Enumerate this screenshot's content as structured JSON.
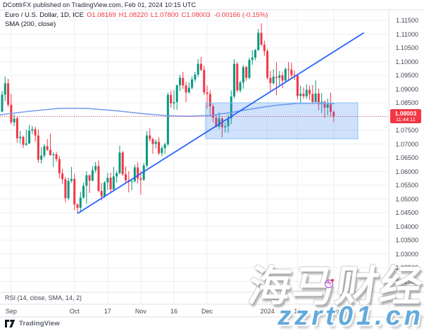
{
  "header": {
    "publish_line": "DCottlrFX published on TradingView.com, Feb 01, 2024 10:15 UTC"
  },
  "legend": {
    "symbol": "Euro / U.S. Dollar, 1D, ICE",
    "o": "O1.08169",
    "h": "H1.08220",
    "l": "L1.07800",
    "c": "C1.08003",
    "change": "-0.00166 (-0.15%)",
    "sma_line": "SMA (200, close)"
  },
  "rsi": {
    "label": "RSI (14, close, SMA, 14, 2)"
  },
  "price_tag": {
    "price": "1.08003",
    "countdown": "11:44:11"
  },
  "footer": {
    "attribution": "TradingView"
  },
  "watermarks": {
    "cjk": "海马财经",
    "url": "zzrt01.cn"
  },
  "colors": {
    "up": "#089981",
    "down": "#f23645",
    "sma": "#7da0f0",
    "trend": "#2962ff",
    "rect_fill": "rgba(66,135,245,0.25)",
    "rect_border": "#8ac4f2",
    "last_price": "#f23645",
    "grid": "#edeff4",
    "border": "#dde1e9"
  },
  "chart_data": {
    "type": "candlestick",
    "title": "Euro / U.S. Dollar, 1D, ICE",
    "timeframe": "1D",
    "price_axis": {
      "min": 1.02,
      "max": 1.115,
      "step": 0.005,
      "decimals": 5
    },
    "time_ticks": [
      {
        "label": "Sep",
        "i": 3
      },
      {
        "label": "Oct",
        "i": 24
      },
      {
        "label": "17",
        "i": 35
      },
      {
        "label": "Nov",
        "i": 46
      },
      {
        "label": "16",
        "i": 57
      },
      {
        "label": "Dec",
        "i": 68
      },
      {
        "label": "2024",
        "i": 88
      },
      {
        "label": "16",
        "i": 98
      },
      {
        "label": "Feb",
        "i": 110
      }
    ],
    "last_price": 1.08003,
    "candles": [
      [
        1.0818,
        1.0893,
        1.0816,
        1.088
      ],
      [
        1.088,
        1.0945,
        1.0856,
        1.0921
      ],
      [
        1.0921,
        1.0937,
        1.0835,
        1.0843
      ],
      [
        1.0843,
        1.0882,
        1.0772,
        1.0779
      ],
      [
        1.0779,
        1.0808,
        1.0765,
        1.0793
      ],
      [
        1.0793,
        1.08,
        1.0705,
        1.0721
      ],
      [
        1.0721,
        1.0748,
        1.0702,
        1.0726
      ],
      [
        1.0726,
        1.0731,
        1.0686,
        1.0697
      ],
      [
        1.0697,
        1.0752,
        1.0694,
        1.0702
      ],
      [
        1.0702,
        1.0769,
        1.07,
        1.0749
      ],
      [
        1.0749,
        1.0766,
        1.0736,
        1.0754
      ],
      [
        1.0754,
        1.0763,
        1.0709,
        1.0731
      ],
      [
        1.0731,
        1.0753,
        1.0632,
        1.0643
      ],
      [
        1.0643,
        1.0688,
        1.0629,
        1.0658
      ],
      [
        1.0658,
        1.0699,
        1.065,
        1.0692
      ],
      [
        1.0692,
        1.0718,
        1.0675,
        1.0679
      ],
      [
        1.0679,
        1.0737,
        1.0657,
        1.066
      ],
      [
        1.066,
        1.0671,
        1.0617,
        1.0663
      ],
      [
        1.0663,
        1.0672,
        1.0635,
        1.0645
      ],
      [
        1.0645,
        1.0656,
        1.0575,
        1.0593
      ],
      [
        1.0593,
        1.0609,
        1.0555,
        1.0572
      ],
      [
        1.0572,
        1.058,
        1.0488,
        1.0503
      ],
      [
        1.0503,
        1.0578,
        1.0495,
        1.0566
      ],
      [
        1.0566,
        1.0617,
        1.0559,
        1.0573
      ],
      [
        1.0573,
        1.0591,
        1.0459,
        1.048
      ],
      [
        1.048,
        1.0484,
        1.0448,
        1.0468
      ],
      [
        1.0468,
        1.0526,
        1.0451,
        1.0505
      ],
      [
        1.0505,
        1.0559,
        1.05,
        1.0548
      ],
      [
        1.0548,
        1.0601,
        1.0483,
        1.0586
      ],
      [
        1.0586,
        1.059,
        1.0522,
        1.0567
      ],
      [
        1.0567,
        1.0619,
        1.0564,
        1.0605
      ],
      [
        1.0605,
        1.0635,
        1.0596,
        1.062
      ],
      [
        1.062,
        1.064,
        1.0525,
        1.0529
      ],
      [
        1.0529,
        1.0558,
        1.0495,
        1.051
      ],
      [
        1.051,
        1.0565,
        1.0505,
        1.056
      ],
      [
        1.056,
        1.0595,
        1.0533,
        1.0577
      ],
      [
        1.0577,
        1.0595,
        1.0525,
        1.0535
      ],
      [
        1.0535,
        1.0617,
        1.053,
        1.0582
      ],
      [
        1.0582,
        1.0602,
        1.056,
        1.0594
      ],
      [
        1.0594,
        1.0694,
        1.059,
        1.0669
      ],
      [
        1.0669,
        1.0675,
        1.0584,
        1.059
      ],
      [
        1.059,
        1.0618,
        1.0557,
        1.0568
      ],
      [
        1.0568,
        1.0601,
        1.0524,
        1.0562
      ],
      [
        1.0562,
        1.0573,
        1.0532,
        1.0565
      ],
      [
        1.0565,
        1.0625,
        1.056,
        1.0615
      ],
      [
        1.0615,
        1.0633,
        1.0557,
        1.0575
      ],
      [
        1.0575,
        1.0603,
        1.0516,
        1.057
      ],
      [
        1.057,
        1.0631,
        1.0565,
        1.0622
      ],
      [
        1.0622,
        1.0747,
        1.0615,
        1.0731
      ],
      [
        1.0731,
        1.0757,
        1.0709,
        1.0718
      ],
      [
        1.0718,
        1.0723,
        1.0664,
        1.07
      ],
      [
        1.07,
        1.0716,
        1.0684,
        1.0708
      ],
      [
        1.0708,
        1.0724,
        1.066,
        1.0667
      ],
      [
        1.0667,
        1.0694,
        1.0656,
        1.0685
      ],
      [
        1.0685,
        1.0705,
        1.0664,
        1.0699
      ],
      [
        1.0699,
        1.0887,
        1.0692,
        1.0879
      ],
      [
        1.0879,
        1.0895,
        1.0832,
        1.0848
      ],
      [
        1.0848,
        1.0896,
        1.0826,
        1.0853
      ],
      [
        1.0853,
        1.0916,
        1.0825,
        1.0914
      ],
      [
        1.0914,
        1.0952,
        1.0893,
        1.0941
      ],
      [
        1.0941,
        1.0963,
        1.09,
        1.0913
      ],
      [
        1.0913,
        1.0926,
        1.0852,
        1.0888
      ],
      [
        1.0888,
        1.0925,
        1.0884,
        1.0905
      ],
      [
        1.0905,
        1.0946,
        1.0899,
        1.0935
      ],
      [
        1.0935,
        1.0963,
        1.0925,
        1.0953
      ],
      [
        1.0953,
        1.1009,
        1.0944,
        1.0992
      ],
      [
        1.0992,
        1.1017,
        1.0965,
        1.097
      ],
      [
        1.097,
        1.0985,
        1.0879,
        1.0888
      ],
      [
        1.0888,
        1.0913,
        1.0829,
        1.0882
      ],
      [
        1.0882,
        1.0895,
        1.0804,
        1.0837
      ],
      [
        1.0837,
        1.0846,
        1.0779,
        1.0796
      ],
      [
        1.0796,
        1.0806,
        1.0759,
        1.0763
      ],
      [
        1.0763,
        1.0817,
        1.0755,
        1.0793
      ],
      [
        1.0793,
        1.0801,
        1.0724,
        1.0761
      ],
      [
        1.0761,
        1.0778,
        1.0742,
        1.0765
      ],
      [
        1.0765,
        1.0808,
        1.0741,
        1.0793
      ],
      [
        1.0793,
        1.0895,
        1.0772,
        1.0873
      ],
      [
        1.0873,
        1.1009,
        1.0866,
        1.0992
      ],
      [
        1.0992,
        1.0998,
        1.0888,
        1.0895
      ],
      [
        1.0895,
        1.093,
        1.0887,
        1.0924
      ],
      [
        1.0924,
        1.0988,
        1.0902,
        1.098
      ],
      [
        1.098,
        1.0985,
        1.093,
        1.0941
      ],
      [
        1.0941,
        1.1014,
        1.0936,
        1.1006
      ],
      [
        1.1006,
        1.1042,
        1.0988,
        1.1015
      ],
      [
        1.1015,
        1.1046,
        1.1005,
        1.1042
      ],
      [
        1.1042,
        1.1119,
        1.104,
        1.1105
      ],
      [
        1.1105,
        1.1139,
        1.1056,
        1.1062
      ],
      [
        1.1062,
        1.1076,
        1.1021,
        1.1038
      ],
      [
        1.1038,
        1.1046,
        1.0935,
        1.0941
      ],
      [
        1.0941,
        1.0967,
        1.0893,
        1.0922
      ],
      [
        1.0922,
        1.0972,
        1.0916,
        1.0945
      ],
      [
        1.0945,
        1.0998,
        1.0877,
        1.0941
      ],
      [
        1.0941,
        1.0966,
        1.0909,
        1.095
      ],
      [
        1.095,
        1.0961,
        1.0903,
        1.0931
      ],
      [
        1.0931,
        1.0979,
        1.0925,
        1.0973
      ],
      [
        1.0973,
        1.0999,
        1.093,
        1.0971
      ],
      [
        1.0971,
        1.0996,
        1.0937,
        1.0951
      ],
      [
        1.0951,
        1.0967,
        1.0934,
        1.095
      ],
      [
        1.095,
        1.0953,
        1.0863,
        1.0875
      ],
      [
        1.0875,
        1.0912,
        1.0845,
        1.0883
      ],
      [
        1.0883,
        1.0906,
        1.0864,
        1.0874
      ],
      [
        1.0874,
        1.0918,
        1.0864,
        1.0897
      ],
      [
        1.0897,
        1.0913,
        1.086,
        1.0882
      ],
      [
        1.0882,
        1.0915,
        1.0845,
        1.0853
      ],
      [
        1.0853,
        1.0932,
        1.085,
        1.0884
      ],
      [
        1.0884,
        1.0901,
        1.0823,
        1.0845
      ],
      [
        1.0845,
        1.0885,
        1.0812,
        1.0854
      ],
      [
        1.0854,
        1.0858,
        1.0796,
        1.0832
      ],
      [
        1.0832,
        1.0866,
        1.0805,
        1.0844
      ],
      [
        1.0844,
        1.0887,
        1.08,
        1.0817
      ],
      [
        1.08169,
        1.0822,
        1.078,
        1.08003
      ]
    ],
    "overlays": {
      "sma_200": [
        [
          -1,
          1.0806
        ],
        [
          8,
          1.0818
        ],
        [
          19,
          1.083
        ],
        [
          28,
          1.083
        ],
        [
          38,
          1.0821
        ],
        [
          47,
          1.081
        ],
        [
          55,
          1.0803
        ],
        [
          62,
          1.0801
        ],
        [
          69,
          1.0804
        ],
        [
          76,
          1.0815
        ],
        [
          83,
          1.0828
        ],
        [
          90,
          1.084
        ],
        [
          98,
          1.0848
        ],
        [
          104,
          1.0849
        ],
        [
          110,
          1.0847
        ]
      ],
      "trend_line": {
        "from": [
          25,
          1.0447
        ],
        "to": [
          120,
          1.1105
        ]
      },
      "support_rect": {
        "from_index": 67.5,
        "to_index": 118,
        "top": 1.085,
        "bottom": 1.0719
      }
    }
  }
}
